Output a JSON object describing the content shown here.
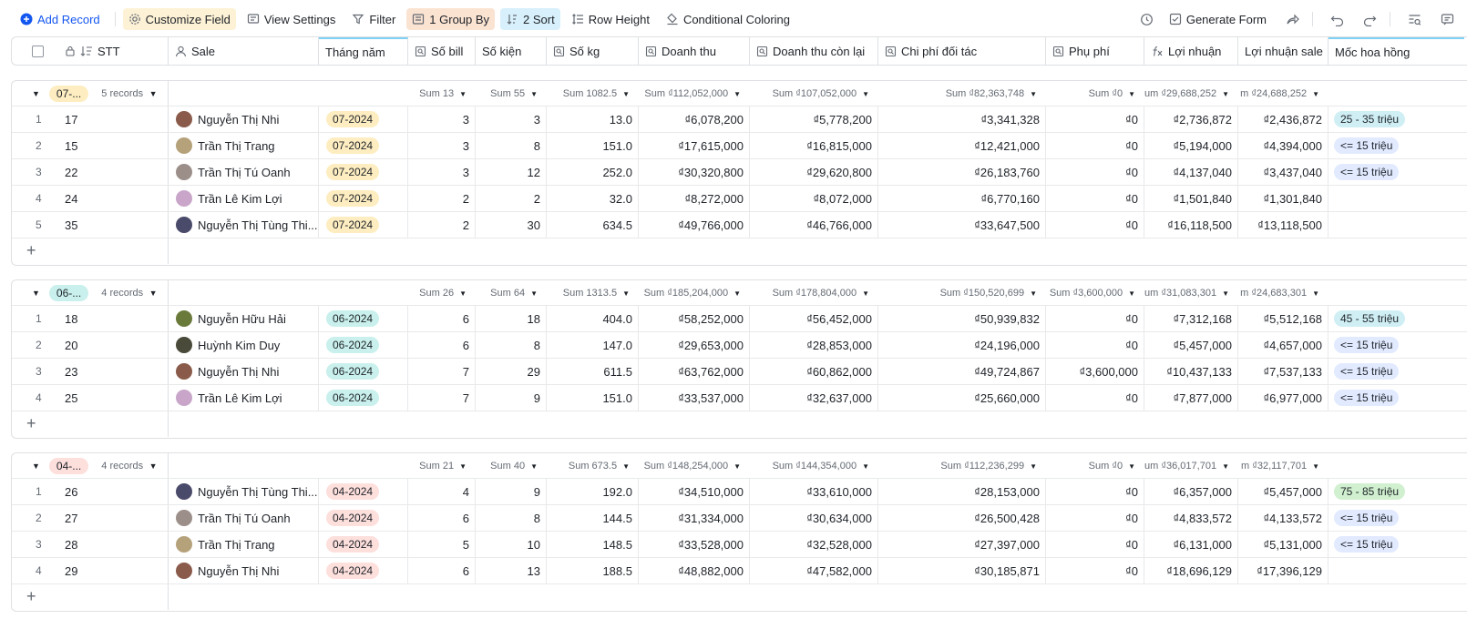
{
  "toolbar": {
    "add_record": "Add Record",
    "customize_field": "Customize Field",
    "view_settings": "View Settings",
    "filter": "Filter",
    "group_by": "1 Group By",
    "sort": "2 Sort",
    "row_height": "Row Height",
    "conditional_coloring": "Conditional Coloring",
    "generate_form": "Generate Form"
  },
  "columns": {
    "stt": "STT",
    "sale": "Sale",
    "thang_nam": "Tháng năm",
    "so_bill": "Số bill",
    "so_kien": "Số kiện",
    "so_kg": "Số kg",
    "doanh_thu": "Doanh thu",
    "doanh_thu_con_lai": "Doanh thu còn lại",
    "chi_phi_doi_tac": "Chi phí đối tác",
    "phu_phi": "Phụ phí",
    "loi_nhuan": "Lợi nhuận",
    "loi_nhuan_sale": "Lợi nhuận sale",
    "moc_hoa_hong": "Mốc hoa hồng"
  },
  "colors": {
    "tag_07": "#fdedc0",
    "tag_06": "#c9f0ec",
    "tag_04": "#fddfdc",
    "tier_low": "#e1eaff",
    "tier_mid": "#cfeff5",
    "tier_high": "#d0f0cf",
    "accent": "#1456f0"
  },
  "groups": [
    {
      "tag": "07-...",
      "tag_color": "#fdedc0",
      "count": "5 records",
      "sums": {
        "so_bill": "Sum 13",
        "so_kien": "Sum 55",
        "so_kg": "Sum 1082.5",
        "doanh_thu": "Sum ₫112,052,000",
        "doanh_thu_con_lai": "Sum ₫107,052,000",
        "chi_phi_doi_tac": "Sum ₫82,363,748",
        "phu_phi": "Sum ₫0",
        "loi_nhuan": "um ₫29,688,252",
        "loi_nhuan_sale": "m ₫24,688,252"
      },
      "rows": [
        {
          "idx": "1",
          "stt": "17",
          "sale": "Nguyễn Thị  Nhi",
          "thang": "07-2024",
          "bill": "3",
          "kien": "3",
          "kg": "13.0",
          "dt": "₫6,078,200",
          "dtcl": "₫5,778,200",
          "cp": "₫3,341,328",
          "pp": "₫0",
          "ln": "₫2,736,872",
          "lns": "₫2,436,872",
          "moc": "25 - 35 triệu",
          "moc_color": "#cfeff5",
          "avatar": "#8a5a4a"
        },
        {
          "idx": "2",
          "stt": "15",
          "sale": "Trần Thị Trang",
          "thang": "07-2024",
          "bill": "3",
          "kien": "8",
          "kg": "151.0",
          "dt": "₫17,615,000",
          "dtcl": "₫16,815,000",
          "cp": "₫12,421,000",
          "pp": "₫0",
          "ln": "₫5,194,000",
          "lns": "₫4,394,000",
          "moc": "<= 15 triệu",
          "moc_color": "#e1eaff",
          "avatar": "#b5a27a"
        },
        {
          "idx": "3",
          "stt": "22",
          "sale": "Trần Thị Tú Oanh",
          "thang": "07-2024",
          "bill": "3",
          "kien": "12",
          "kg": "252.0",
          "dt": "₫30,320,800",
          "dtcl": "₫29,620,800",
          "cp": "₫26,183,760",
          "pp": "₫0",
          "ln": "₫4,137,040",
          "lns": "₫3,437,040",
          "moc": "<= 15 triệu",
          "moc_color": "#e1eaff",
          "avatar": "#9c8f8a"
        },
        {
          "idx": "4",
          "stt": "24",
          "sale": "Trần Lê Kim Lợi",
          "thang": "07-2024",
          "bill": "2",
          "kien": "2",
          "kg": "32.0",
          "dt": "₫8,272,000",
          "dtcl": "₫8,072,000",
          "cp": "₫6,770,160",
          "pp": "₫0",
          "ln": "₫1,501,840",
          "lns": "₫1,301,840",
          "moc": "",
          "moc_color": "",
          "avatar": "#c9a6c9"
        },
        {
          "idx": "5",
          "stt": "35",
          "sale": "Nguyễn Thị Tùng Thi...",
          "thang": "07-2024",
          "bill": "2",
          "kien": "30",
          "kg": "634.5",
          "dt": "₫49,766,000",
          "dtcl": "₫46,766,000",
          "cp": "₫33,647,500",
          "pp": "₫0",
          "ln": "₫16,118,500",
          "lns": "₫13,118,500",
          "moc": "",
          "moc_color": "",
          "avatar": "#4a4a6a"
        }
      ]
    },
    {
      "tag": "06-...",
      "tag_color": "#c9f0ec",
      "count": "4 records",
      "sums": {
        "so_bill": "Sum 26",
        "so_kien": "Sum 64",
        "so_kg": "Sum 1313.5",
        "doanh_thu": "Sum ₫185,204,000",
        "doanh_thu_con_lai": "Sum ₫178,804,000",
        "chi_phi_doi_tac": "Sum ₫150,520,699",
        "phu_phi": "Sum ₫3,600,000",
        "loi_nhuan": "um ₫31,083,301",
        "loi_nhuan_sale": "m ₫24,683,301"
      },
      "rows": [
        {
          "idx": "1",
          "stt": "18",
          "sale": "Nguyễn Hữu Hải",
          "thang": "06-2024",
          "bill": "6",
          "kien": "18",
          "kg": "404.0",
          "dt": "₫58,252,000",
          "dtcl": "₫56,452,000",
          "cp": "₫50,939,832",
          "pp": "₫0",
          "ln": "₫7,312,168",
          "lns": "₫5,512,168",
          "moc": "45 - 55 triệu",
          "moc_color": "#cfeff5",
          "avatar": "#6a7a3a"
        },
        {
          "idx": "2",
          "stt": "20",
          "sale": "Huỳnh Kim Duy",
          "thang": "06-2024",
          "bill": "6",
          "kien": "8",
          "kg": "147.0",
          "dt": "₫29,653,000",
          "dtcl": "₫28,853,000",
          "cp": "₫24,196,000",
          "pp": "₫0",
          "ln": "₫5,457,000",
          "lns": "₫4,657,000",
          "moc": "<= 15 triệu",
          "moc_color": "#e1eaff",
          "avatar": "#4a4a3a"
        },
        {
          "idx": "3",
          "stt": "23",
          "sale": "Nguyễn Thị  Nhi",
          "thang": "06-2024",
          "bill": "7",
          "kien": "29",
          "kg": "611.5",
          "dt": "₫63,762,000",
          "dtcl": "₫60,862,000",
          "cp": "₫49,724,867",
          "pp": "₫3,600,000",
          "ln": "₫10,437,133",
          "lns": "₫7,537,133",
          "moc": "<= 15 triệu",
          "moc_color": "#e1eaff",
          "avatar": "#8a5a4a"
        },
        {
          "idx": "4",
          "stt": "25",
          "sale": "Trần Lê Kim Lợi",
          "thang": "06-2024",
          "bill": "7",
          "kien": "9",
          "kg": "151.0",
          "dt": "₫33,537,000",
          "dtcl": "₫32,637,000",
          "cp": "₫25,660,000",
          "pp": "₫0",
          "ln": "₫7,877,000",
          "lns": "₫6,977,000",
          "moc": "<= 15 triệu",
          "moc_color": "#e1eaff",
          "avatar": "#c9a6c9"
        }
      ]
    },
    {
      "tag": "04-...",
      "tag_color": "#fddfdc",
      "count": "4 records",
      "sums": {
        "so_bill": "Sum 21",
        "so_kien": "Sum 40",
        "so_kg": "Sum 673.5",
        "doanh_thu": "Sum ₫148,254,000",
        "doanh_thu_con_lai": "Sum ₫144,354,000",
        "chi_phi_doi_tac": "Sum ₫112,236,299",
        "phu_phi": "Sum ₫0",
        "loi_nhuan": "um ₫36,017,701",
        "loi_nhuan_sale": "m ₫32,117,701"
      },
      "rows": [
        {
          "idx": "1",
          "stt": "26",
          "sale": "Nguyễn Thị Tùng Thi...",
          "thang": "04-2024",
          "bill": "4",
          "kien": "9",
          "kg": "192.0",
          "dt": "₫34,510,000",
          "dtcl": "₫33,610,000",
          "cp": "₫28,153,000",
          "pp": "₫0",
          "ln": "₫6,357,000",
          "lns": "₫5,457,000",
          "moc": "75 - 85 triệu",
          "moc_color": "#d0f0cf",
          "avatar": "#4a4a6a"
        },
        {
          "idx": "2",
          "stt": "27",
          "sale": "Trần Thị Tú Oanh",
          "thang": "04-2024",
          "bill": "6",
          "kien": "8",
          "kg": "144.5",
          "dt": "₫31,334,000",
          "dtcl": "₫30,634,000",
          "cp": "₫26,500,428",
          "pp": "₫0",
          "ln": "₫4,833,572",
          "lns": "₫4,133,572",
          "moc": "<= 15 triệu",
          "moc_color": "#e1eaff",
          "avatar": "#9c8f8a"
        },
        {
          "idx": "3",
          "stt": "28",
          "sale": "Trần Thị Trang",
          "thang": "04-2024",
          "bill": "5",
          "kien": "10",
          "kg": "148.5",
          "dt": "₫33,528,000",
          "dtcl": "₫32,528,000",
          "cp": "₫27,397,000",
          "pp": "₫0",
          "ln": "₫6,131,000",
          "lns": "₫5,131,000",
          "moc": "<= 15 triệu",
          "moc_color": "#e1eaff",
          "avatar": "#b5a27a"
        },
        {
          "idx": "4",
          "stt": "29",
          "sale": "Nguyễn Thị  Nhi",
          "thang": "04-2024",
          "bill": "6",
          "kien": "13",
          "kg": "188.5",
          "dt": "₫48,882,000",
          "dtcl": "₫47,582,000",
          "cp": "₫30,185,871",
          "pp": "₫0",
          "ln": "₫18,696,129",
          "lns": "₫17,396,129",
          "moc": "",
          "moc_color": "",
          "avatar": "#8a5a4a"
        }
      ]
    }
  ]
}
